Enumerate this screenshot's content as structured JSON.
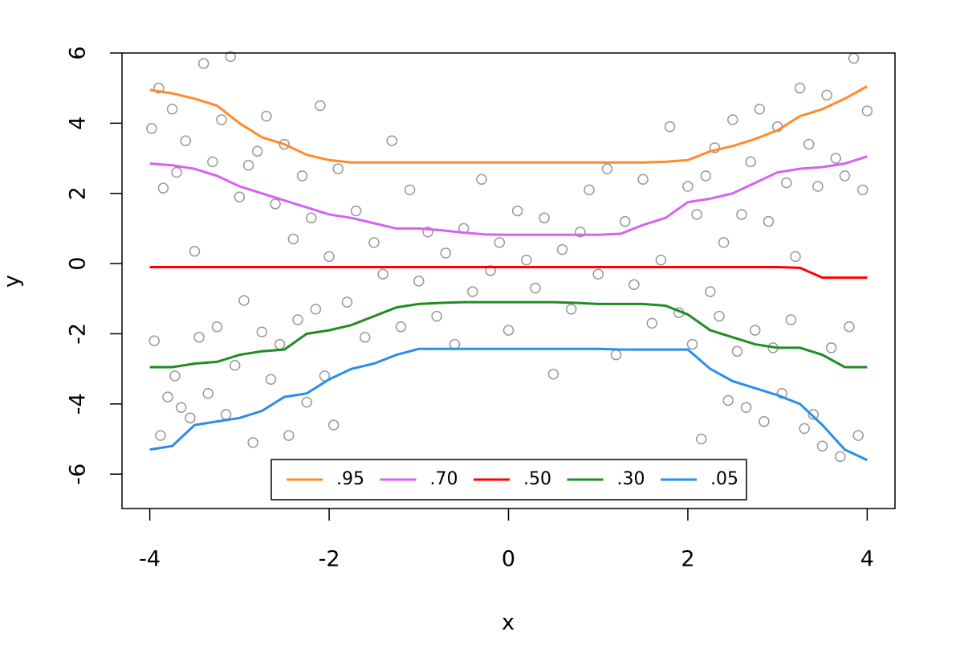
{
  "chart_data": {
    "type": "scatter",
    "x_label": "x",
    "y_label": "y",
    "xlim": [
      -4.31,
      4.31
    ],
    "ylim": [
      -6.98,
      6.0
    ],
    "xticks": [
      -4,
      -2,
      0,
      2,
      4
    ],
    "yticks": [
      -6,
      -4,
      -2,
      0,
      2,
      4,
      6
    ],
    "legend": "bottom",
    "points": {
      "color": "#999999",
      "x": [
        -3.98,
        -3.95,
        -3.9,
        -3.88,
        -3.85,
        -3.8,
        -3.75,
        -3.72,
        -3.7,
        -3.65,
        -3.6,
        -3.55,
        -3.5,
        -3.45,
        -3.4,
        -3.35,
        -3.3,
        -3.25,
        -3.2,
        -3.15,
        -3.1,
        -3.05,
        -3.0,
        -2.95,
        -2.9,
        -2.85,
        -2.8,
        -2.75,
        -2.7,
        -2.65,
        -2.6,
        -2.55,
        -2.5,
        -2.45,
        -2.4,
        -2.35,
        -2.3,
        -2.25,
        -2.2,
        -2.15,
        -2.1,
        -2.05,
        -2.0,
        -1.95,
        -1.9,
        -1.8,
        -1.7,
        -1.6,
        -1.5,
        -1.4,
        -1.3,
        -1.2,
        -1.1,
        -1.0,
        -0.9,
        -0.8,
        -0.7,
        -0.6,
        -0.5,
        -0.4,
        -0.3,
        -0.2,
        -0.1,
        0.0,
        0.1,
        0.2,
        0.3,
        0.4,
        0.5,
        0.6,
        0.7,
        0.8,
        0.9,
        1.0,
        1.1,
        1.2,
        1.3,
        1.4,
        1.5,
        1.6,
        1.7,
        1.8,
        1.9,
        2.0,
        2.05,
        2.1,
        2.15,
        2.2,
        2.25,
        2.3,
        2.35,
        2.4,
        2.45,
        2.5,
        2.55,
        2.6,
        2.65,
        2.7,
        2.75,
        2.8,
        2.85,
        2.9,
        2.95,
        3.0,
        3.05,
        3.1,
        3.15,
        3.2,
        3.25,
        3.3,
        3.35,
        3.4,
        3.45,
        3.5,
        3.55,
        3.6,
        3.65,
        3.7,
        3.75,
        3.8,
        3.85,
        3.9,
        3.95,
        4.0
      ],
      "y": [
        3.85,
        -2.2,
        5.0,
        -4.9,
        2.15,
        -3.8,
        4.4,
        -3.2,
        2.6,
        -4.1,
        3.5,
        -4.4,
        0.35,
        -2.1,
        5.7,
        -3.7,
        2.9,
        -1.8,
        4.1,
        -4.3,
        5.9,
        -2.9,
        1.9,
        -1.05,
        2.8,
        -5.1,
        3.2,
        -1.95,
        4.2,
        -3.3,
        1.7,
        -2.3,
        3.4,
        -4.9,
        0.7,
        -1.6,
        2.5,
        -3.95,
        1.3,
        -1.3,
        4.5,
        -3.2,
        0.2,
        -4.6,
        2.7,
        -1.1,
        1.5,
        -2.1,
        0.6,
        -0.3,
        3.5,
        -1.8,
        2.1,
        -0.5,
        0.9,
        -1.5,
        0.3,
        -2.3,
        1.0,
        -0.8,
        2.4,
        -0.2,
        0.6,
        -1.9,
        1.5,
        0.1,
        -0.7,
        1.3,
        -3.15,
        0.4,
        -1.3,
        0.9,
        2.1,
        -0.3,
        2.7,
        -2.6,
        1.2,
        -0.6,
        2.4,
        -1.7,
        0.1,
        3.9,
        -1.4,
        2.2,
        -2.3,
        1.4,
        -5.0,
        2.5,
        -0.8,
        3.3,
        -1.5,
        0.6,
        -3.9,
        4.1,
        -2.5,
        1.4,
        -4.1,
        2.9,
        -1.9,
        4.4,
        -4.5,
        1.2,
        -2.4,
        3.9,
        -3.7,
        2.3,
        -1.6,
        0.2,
        5.0,
        -4.7,
        3.4,
        -4.3,
        2.2,
        -5.2,
        4.8,
        -2.4,
        3.0,
        -5.5,
        2.5,
        -1.8,
        5.85,
        -4.9,
        2.1,
        4.35
      ]
    },
    "series": [
      {
        "name": ".95",
        "color": "#ff8c2a",
        "x": [
          -4,
          -3.75,
          -3.5,
          -3.25,
          -3,
          -2.75,
          -2.5,
          -2.25,
          -2,
          -1.75,
          -1.5,
          -1.25,
          -1,
          -0.75,
          -0.5,
          -0.25,
          0,
          0.25,
          0.5,
          0.75,
          1,
          1.25,
          1.5,
          1.75,
          2,
          2.25,
          2.5,
          2.75,
          3,
          3.25,
          3.5,
          3.75,
          4
        ],
        "values": [
          4.95,
          4.85,
          4.7,
          4.5,
          4.0,
          3.6,
          3.4,
          3.1,
          2.95,
          2.88,
          2.88,
          2.88,
          2.88,
          2.88,
          2.88,
          2.88,
          2.88,
          2.88,
          2.88,
          2.88,
          2.88,
          2.88,
          2.88,
          2.9,
          2.95,
          3.2,
          3.35,
          3.55,
          3.8,
          4.2,
          4.4,
          4.7,
          5.05
        ]
      },
      {
        "name": ".70",
        "color": "#d663f0",
        "x": [
          -4,
          -3.75,
          -3.5,
          -3.25,
          -3,
          -2.75,
          -2.5,
          -2.25,
          -2,
          -1.75,
          -1.5,
          -1.25,
          -1,
          -0.75,
          -0.5,
          -0.25,
          0,
          0.25,
          0.5,
          0.75,
          1,
          1.25,
          1.5,
          1.75,
          2,
          2.25,
          2.5,
          2.75,
          3,
          3.25,
          3.5,
          3.75,
          4
        ],
        "values": [
          2.85,
          2.8,
          2.7,
          2.5,
          2.2,
          2.0,
          1.8,
          1.6,
          1.4,
          1.3,
          1.15,
          1.0,
          1.0,
          0.95,
          0.88,
          0.83,
          0.82,
          0.82,
          0.82,
          0.82,
          0.82,
          0.85,
          1.1,
          1.3,
          1.75,
          1.85,
          2.0,
          2.3,
          2.6,
          2.7,
          2.75,
          2.85,
          3.05
        ]
      },
      {
        "name": ".50",
        "color": "#ff0000",
        "x": [
          -4,
          -3.75,
          -3.5,
          -3.25,
          -3,
          -2.75,
          -2.5,
          -2.25,
          -2,
          -1.75,
          -1.5,
          -1.25,
          -1,
          -0.75,
          -0.5,
          -0.25,
          0,
          0.25,
          0.5,
          0.75,
          1,
          1.25,
          1.5,
          1.75,
          2,
          2.25,
          2.5,
          2.75,
          3,
          3.25,
          3.5,
          3.75,
          4
        ],
        "values": [
          -0.1,
          -0.1,
          -0.1,
          -0.1,
          -0.1,
          -0.1,
          -0.1,
          -0.1,
          -0.1,
          -0.1,
          -0.1,
          -0.1,
          -0.1,
          -0.1,
          -0.1,
          -0.1,
          -0.1,
          -0.1,
          -0.1,
          -0.1,
          -0.1,
          -0.1,
          -0.1,
          -0.1,
          -0.1,
          -0.1,
          -0.1,
          -0.1,
          -0.1,
          -0.12,
          -0.4,
          -0.4,
          -0.4
        ]
      },
      {
        "name": ".30",
        "color": "#228b22",
        "x": [
          -4,
          -3.75,
          -3.5,
          -3.25,
          -3,
          -2.75,
          -2.5,
          -2.25,
          -2,
          -1.75,
          -1.5,
          -1.25,
          -1,
          -0.75,
          -0.5,
          -0.25,
          0,
          0.25,
          0.5,
          0.75,
          1,
          1.25,
          1.5,
          1.75,
          2,
          2.25,
          2.5,
          2.75,
          3,
          3.25,
          3.5,
          3.75,
          4
        ],
        "values": [
          -2.95,
          -2.95,
          -2.85,
          -2.8,
          -2.6,
          -2.5,
          -2.45,
          -2.0,
          -1.9,
          -1.75,
          -1.5,
          -1.25,
          -1.15,
          -1.12,
          -1.1,
          -1.1,
          -1.1,
          -1.1,
          -1.1,
          -1.12,
          -1.15,
          -1.15,
          -1.15,
          -1.2,
          -1.45,
          -1.9,
          -2.1,
          -2.3,
          -2.4,
          -2.4,
          -2.6,
          -2.95,
          -2.95
        ]
      },
      {
        "name": ".05",
        "color": "#2b8ee8",
        "x": [
          -4,
          -3.75,
          -3.5,
          -3.25,
          -3,
          -2.75,
          -2.5,
          -2.25,
          -2,
          -1.75,
          -1.5,
          -1.25,
          -1,
          -0.75,
          -0.5,
          -0.25,
          0,
          0.25,
          0.5,
          0.75,
          1,
          1.25,
          1.5,
          1.75,
          2,
          2.25,
          2.5,
          2.75,
          3,
          3.25,
          3.5,
          3.75,
          4
        ],
        "values": [
          -5.3,
          -5.2,
          -4.6,
          -4.5,
          -4.4,
          -4.2,
          -3.8,
          -3.7,
          -3.3,
          -3.0,
          -2.85,
          -2.6,
          -2.43,
          -2.43,
          -2.43,
          -2.43,
          -2.43,
          -2.43,
          -2.43,
          -2.43,
          -2.43,
          -2.45,
          -2.45,
          -2.45,
          -2.45,
          -3.0,
          -3.35,
          -3.55,
          -3.75,
          -4.0,
          -4.6,
          -5.3,
          -5.6
        ]
      }
    ]
  }
}
